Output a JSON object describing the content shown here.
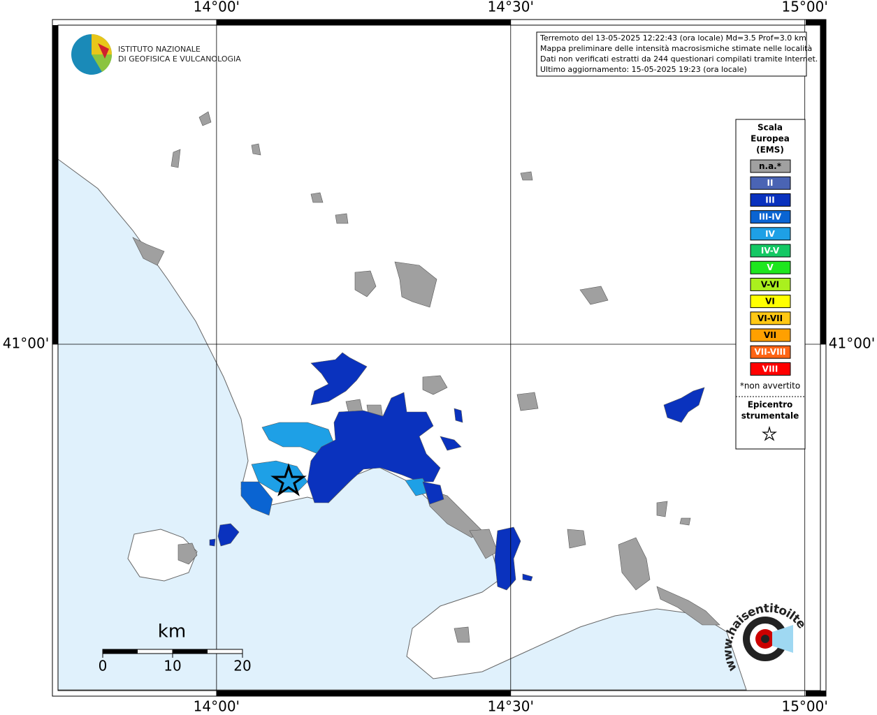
{
  "map": {
    "lonlim": [
      13.721,
      15.036
    ],
    "latlim": [
      40.548,
      41.417
    ],
    "lon_ticks": [
      {
        "value": 14,
        "label": "14°00'"
      },
      {
        "value": 14.5,
        "label": "14°30'"
      },
      {
        "value": 15,
        "label": "15°00'"
      }
    ],
    "lat_ticks": [
      {
        "value": 41,
        "label": "41°00'"
      }
    ],
    "grid": true
  },
  "logo": {
    "line1": "ISTITUTO NAZIONALE",
    "line2": "DI GEOFISICA E VULCANOLOGIA"
  },
  "info": [
    "Terremoto del 13-05-2025 12:22:43 (ora locale) Md=3.5 Prof=3.0 km",
    "Mappa preliminare delle intensità macrosismiche stimate nelle località",
    "Dati non verificati estratti da 244 questionari compilati tramite Internet.",
    "Ultimo aggiornamento: 15-05-2025 19:23 (ora locale)"
  ],
  "legend": {
    "title": [
      "Scala",
      "Europea",
      "(EMS)"
    ],
    "items": [
      {
        "label": "n.a.*",
        "color": "#a0a0a0"
      },
      {
        "label": "II",
        "color": "#4a64b4"
      },
      {
        "label": "III",
        "color": "#0a32be"
      },
      {
        "label": "III-IV",
        "color": "#0a64d2"
      },
      {
        "label": "IV",
        "color": "#1ea0e6"
      },
      {
        "label": "IV-V",
        "color": "#14c864"
      },
      {
        "label": "V",
        "color": "#1ee61e"
      },
      {
        "label": "V-VI",
        "color": "#aaf01e"
      },
      {
        "label": "VI",
        "color": "#ffff00"
      },
      {
        "label": "VI-VII",
        "color": "#ffc814"
      },
      {
        "label": "VII",
        "color": "#ffa000"
      },
      {
        "label": "VII-VIII",
        "color": "#ff6414"
      },
      {
        "label": "VIII",
        "color": "#ff0000"
      }
    ],
    "note": "*non avvertito",
    "epicentre": [
      "Epicentro",
      "strumentale"
    ]
  },
  "scale_bar": {
    "unit": "km",
    "ticks": [
      0,
      10,
      20
    ]
  },
  "site": "www.haisentitoilterremoto.it"
}
